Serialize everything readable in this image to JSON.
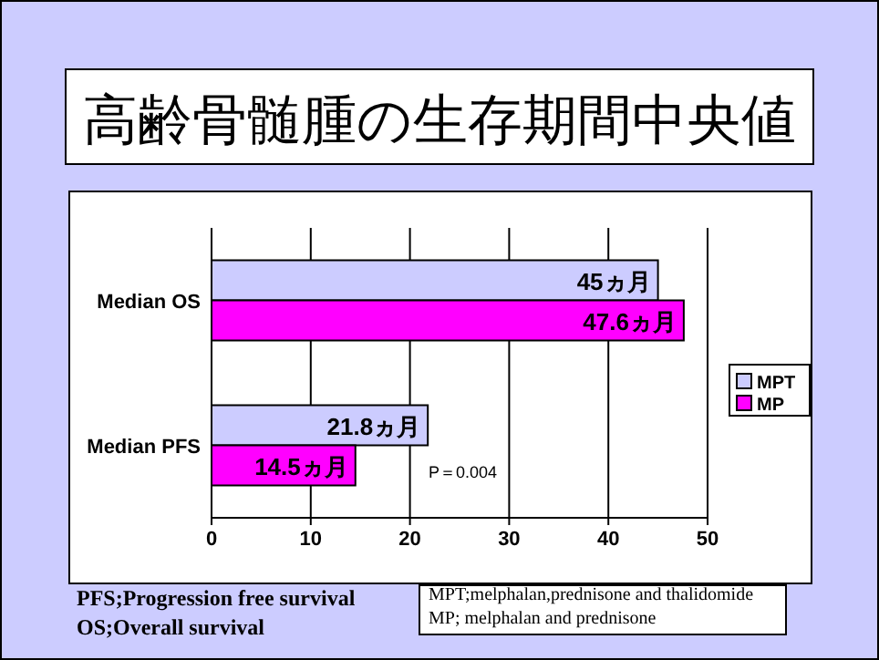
{
  "chart_data": {
    "type": "bar",
    "orientation": "horizontal",
    "title": "高齢骨髄腫の生存期間中央値",
    "categories": [
      "Median OS",
      "Median PFS"
    ],
    "series": [
      {
        "name": "MPT",
        "color": "#ccccff",
        "values": [
          45,
          21.8
        ],
        "value_labels": [
          "45ヵ月",
          "21.8ヵ月"
        ]
      },
      {
        "name": "MP",
        "color": "#ff00ff",
        "values": [
          47.6,
          14.5
        ],
        "value_labels": [
          "47.6ヵ月",
          "14.5ヵ月"
        ]
      }
    ],
    "xlim": [
      0,
      50
    ],
    "xticks": [
      0,
      10,
      20,
      30,
      40,
      50
    ],
    "grid": "x",
    "legend": "right",
    "annotations": [
      "P＝0.004",
      "PFS;Progression free survival",
      "OS;Overall survival",
      "MPT;melphalan,prednisone and thalidomide",
      "MP; melphalan and prednisone"
    ]
  }
}
